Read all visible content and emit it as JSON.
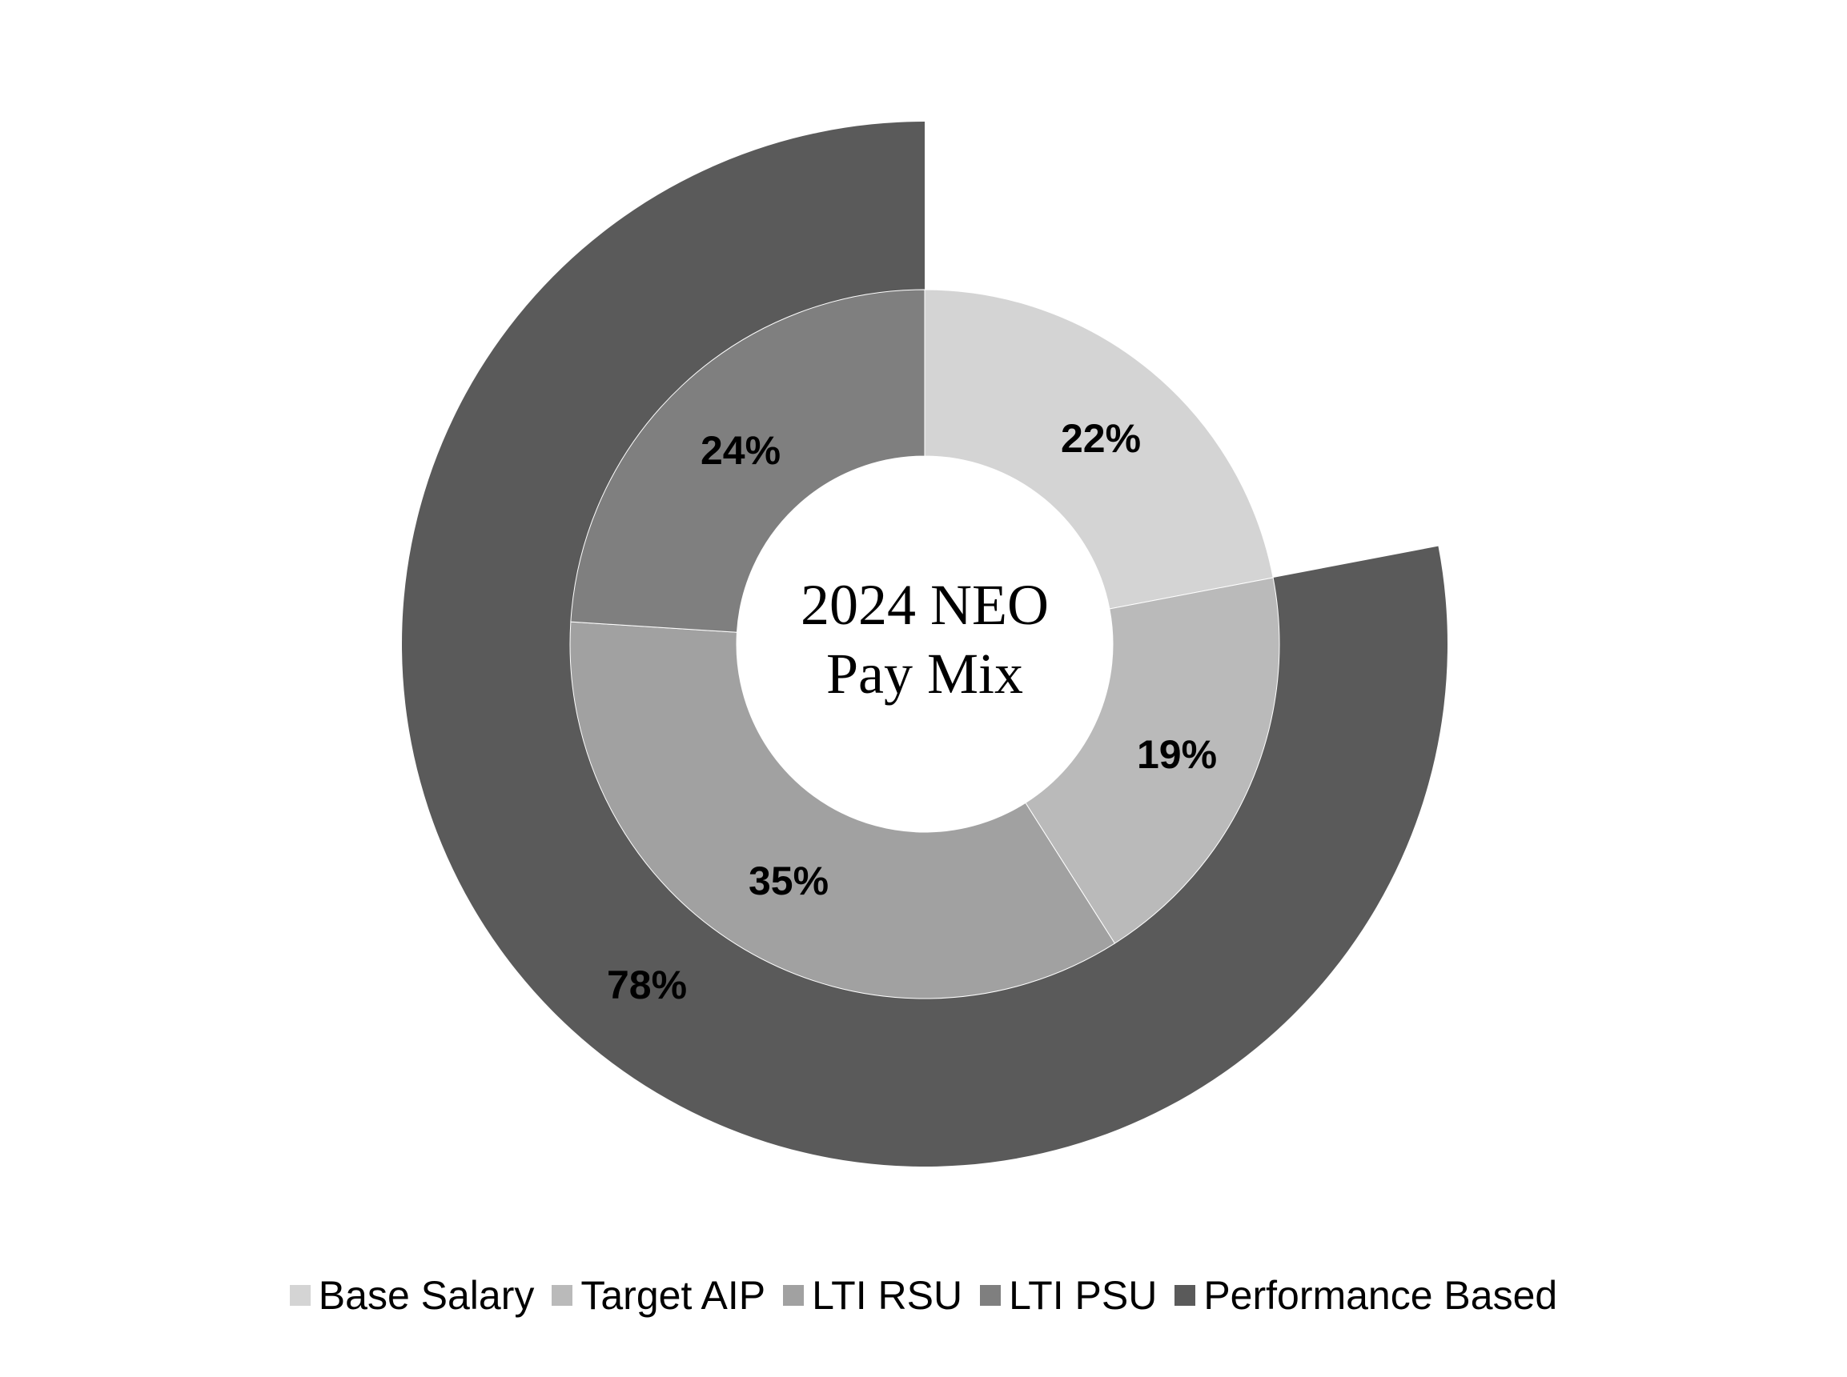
{
  "chart_data": {
    "type": "pie",
    "subtype": "nested-donut",
    "title": "2024 NEO Pay Mix",
    "title_lines": [
      "2024 NEO",
      "Pay Mix"
    ],
    "inner_ring": [
      {
        "name": "Base Salary",
        "value": 22,
        "label": "22%",
        "color": "#d4d4d4"
      },
      {
        "name": "Target AIP",
        "value": 19,
        "label": "19%",
        "color": "#bababa"
      },
      {
        "name": "LTI RSU",
        "value": 35,
        "label": "35%",
        "color": "#a1a1a1"
      },
      {
        "name": "LTI PSU",
        "value": 24,
        "label": "24%",
        "color": "#7f7f7f"
      }
    ],
    "outer_ring": [
      {
        "name": "Performance Based",
        "value": 78,
        "label": "78%",
        "color": "#5a5a5a",
        "start_percent": 22
      }
    ],
    "legend": [
      {
        "label": "Base Salary",
        "color": "#d4d4d4"
      },
      {
        "label": "Target AIP",
        "color": "#bababa"
      },
      {
        "label": "LTI RSU",
        "color": "#a1a1a1"
      },
      {
        "label": "LTI PSU",
        "color": "#7f7f7f"
      },
      {
        "label": "Performance Based",
        "color": "#5a5a5a"
      }
    ],
    "legend_position": "bottom"
  }
}
